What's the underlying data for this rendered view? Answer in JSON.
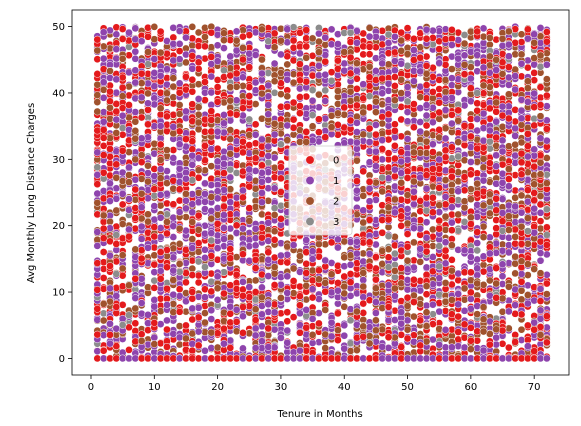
{
  "chart_data": {
    "type": "scatter",
    "title": "",
    "xlabel": "Tenure in Months",
    "ylabel": "Avg Monthly Long Distance Charges",
    "xlim": [
      -3,
      75.5
    ],
    "ylim": [
      -2.5,
      52.5
    ],
    "xticks": [
      0,
      10,
      20,
      30,
      40,
      50,
      60,
      70
    ],
    "yticks": [
      0,
      10,
      20,
      30,
      40,
      50
    ],
    "x_range": [
      1,
      72
    ],
    "y_range": [
      0,
      49.99
    ],
    "grid": false,
    "legend": {
      "placement": "center",
      "entries": [
        {
          "label": "0",
          "color": "#e41a1c"
        },
        {
          "label": "1",
          "color": "#8e44ad"
        },
        {
          "label": "2",
          "color": "#a0522d"
        },
        {
          "label": "3",
          "color": "#8c8c8c"
        }
      ]
    },
    "series": [
      {
        "name": "0",
        "color": "#e41a1c",
        "share": 0.34
      },
      {
        "name": "1",
        "color": "#8e44ad",
        "share": 0.38
      },
      {
        "name": "2",
        "color": "#a0522d",
        "share": 0.24
      },
      {
        "name": "3",
        "color": "#8c8c8c",
        "share": 0.04
      }
    ]
  }
}
